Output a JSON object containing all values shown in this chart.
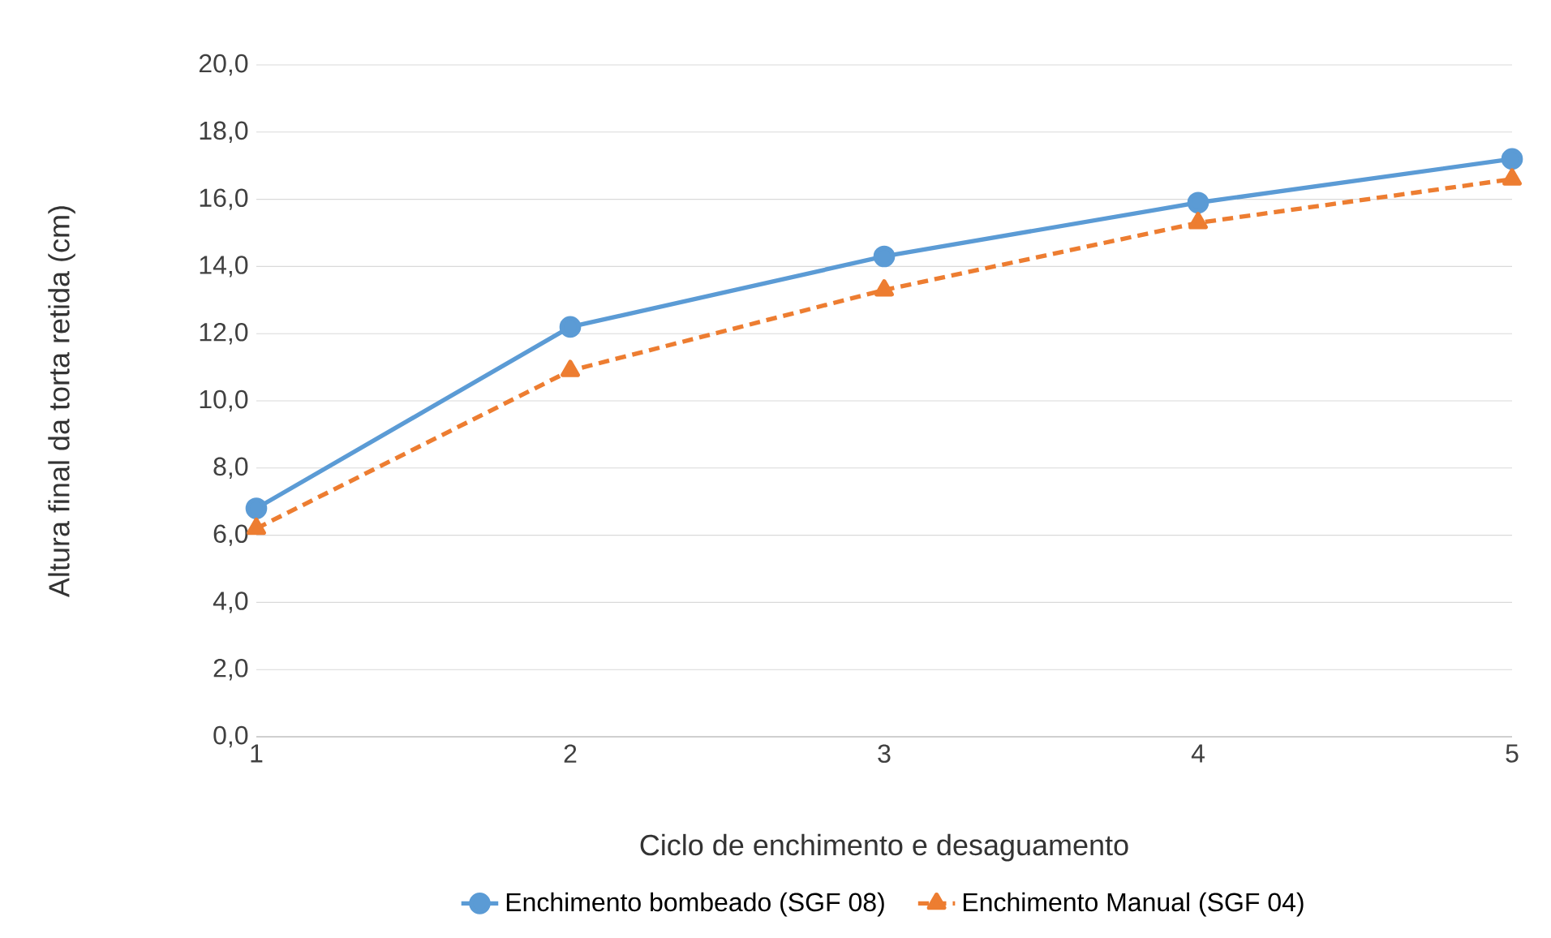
{
  "chart_data": {
    "type": "line",
    "xlabel": "Ciclo de enchimento e desaguamento",
    "ylabel": "Altura final da torta retida (cm)",
    "categories": [
      "1",
      "2",
      "3",
      "4",
      "5"
    ],
    "ylim": [
      0,
      20
    ],
    "yticks": [
      {
        "value": 0,
        "label": "0,0"
      },
      {
        "value": 2,
        "label": "2,0"
      },
      {
        "value": 4,
        "label": "4,0"
      },
      {
        "value": 6,
        "label": "6,0"
      },
      {
        "value": 8,
        "label": "8,0"
      },
      {
        "value": 10,
        "label": "10,0"
      },
      {
        "value": 12,
        "label": "12,0"
      },
      {
        "value": 14,
        "label": "14,0"
      },
      {
        "value": 16,
        "label": "16,0"
      },
      {
        "value": 18,
        "label": "18,0"
      },
      {
        "value": 20,
        "label": "20,0"
      }
    ],
    "grid": "y",
    "legend": "bottom",
    "series": [
      {
        "name": "Enchimento bombeado (SGF 08)",
        "color": "#5b9bd5",
        "marker": "circle",
        "line_style": "solid",
        "values": [
          6.8,
          12.2,
          14.3,
          15.9,
          17.2
        ]
      },
      {
        "name": "Enchimento Manual (SGF 04)",
        "color": "#ed7d31",
        "marker": "triangle",
        "line_style": "dashed",
        "values": [
          6.2,
          10.9,
          13.3,
          15.3,
          16.6
        ]
      }
    ]
  }
}
